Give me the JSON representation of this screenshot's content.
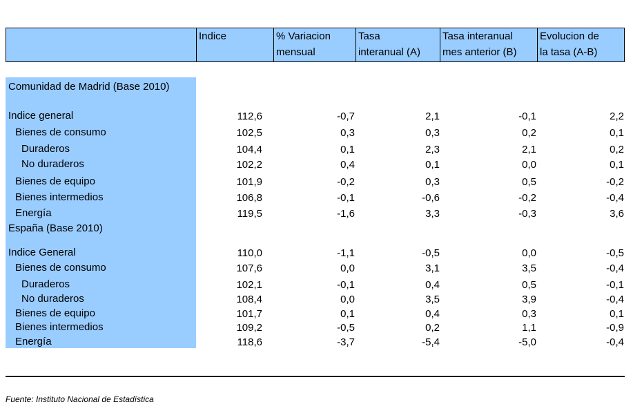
{
  "columns": [
    "Indice",
    "% Variacion mensual",
    "Tasa interanual (A)",
    "Tasa interanual mes anterior (B)",
    "Evolucion de la tasa (A-B)"
  ],
  "column_lines": [
    [
      "Indice",
      ""
    ],
    [
      "% Variacion",
      "mensual"
    ],
    [
      "Tasa",
      "interanual (A)"
    ],
    [
      "Tasa interanual",
      "mes anterior (B)"
    ],
    [
      "Evolucion de",
      "la tasa (A-B)"
    ]
  ],
  "sections": [
    {
      "title": "Comunidad de Madrid (Base 2010)",
      "rows": [
        {
          "label": "Indice general",
          "indent": 0,
          "values": [
            "112,6",
            "-0,7",
            "2,1",
            "-0,1",
            "2,2"
          ]
        },
        {
          "label": "Bienes de consumo",
          "indent": 1,
          "values": [
            "102,5",
            "0,3",
            "0,3",
            "0,2",
            "0,1"
          ]
        },
        {
          "label": "Duraderos",
          "indent": 2,
          "values": [
            "104,4",
            "0,1",
            "2,3",
            "2,1",
            "0,2"
          ]
        },
        {
          "label": "No duraderos",
          "indent": 2,
          "values": [
            "102,2",
            "0,4",
            "0,1",
            "0,0",
            "0,1"
          ]
        },
        {
          "label": "Bienes de equipo",
          "indent": 1,
          "values": [
            "101,9",
            "-0,2",
            "0,3",
            "0,5",
            "-0,2"
          ]
        },
        {
          "label": "Bienes intermedios",
          "indent": 1,
          "values": [
            "106,8",
            "-0,1",
            "-0,6",
            "-0,2",
            "-0,4"
          ]
        },
        {
          "label": "Energía",
          "indent": 1,
          "values": [
            "119,5",
            "-1,6",
            "3,3",
            "-0,3",
            "3,6"
          ]
        }
      ]
    },
    {
      "title": "España (Base 2010)",
      "rows": [
        {
          "label": "Indice General",
          "indent": 0,
          "values": [
            "110,0",
            "-1,1",
            "-0,5",
            "0,0",
            "-0,5"
          ]
        },
        {
          "label": "Bienes de consumo",
          "indent": 1,
          "values": [
            "107,6",
            "0,0",
            "3,1",
            "3,5",
            "-0,4"
          ]
        },
        {
          "label": "Duraderos",
          "indent": 2,
          "values": [
            "102,1",
            "-0,1",
            "0,4",
            "0,5",
            "-0,1"
          ]
        },
        {
          "label": "No duraderos",
          "indent": 2,
          "values": [
            "108,4",
            "0,0",
            "3,5",
            "3,9",
            "-0,4"
          ]
        },
        {
          "label": "Bienes de equipo",
          "indent": 1,
          "values": [
            "101,7",
            "0,1",
            "0,4",
            "0,3",
            "0,1"
          ]
        },
        {
          "label": "Bienes intermedios",
          "indent": 1,
          "values": [
            "109,2",
            "-0,5",
            "0,2",
            "1,1",
            "-0,9"
          ]
        },
        {
          "label": "Energía",
          "indent": 1,
          "values": [
            "118,6",
            "-3,7",
            "-5,4",
            "-5,0",
            "-0,4"
          ]
        }
      ]
    }
  ],
  "source": "Fuente: Instituto Nacional de Estadística",
  "colors": {
    "header_bg": "#99ccff",
    "label_bg": "#99ccff"
  }
}
